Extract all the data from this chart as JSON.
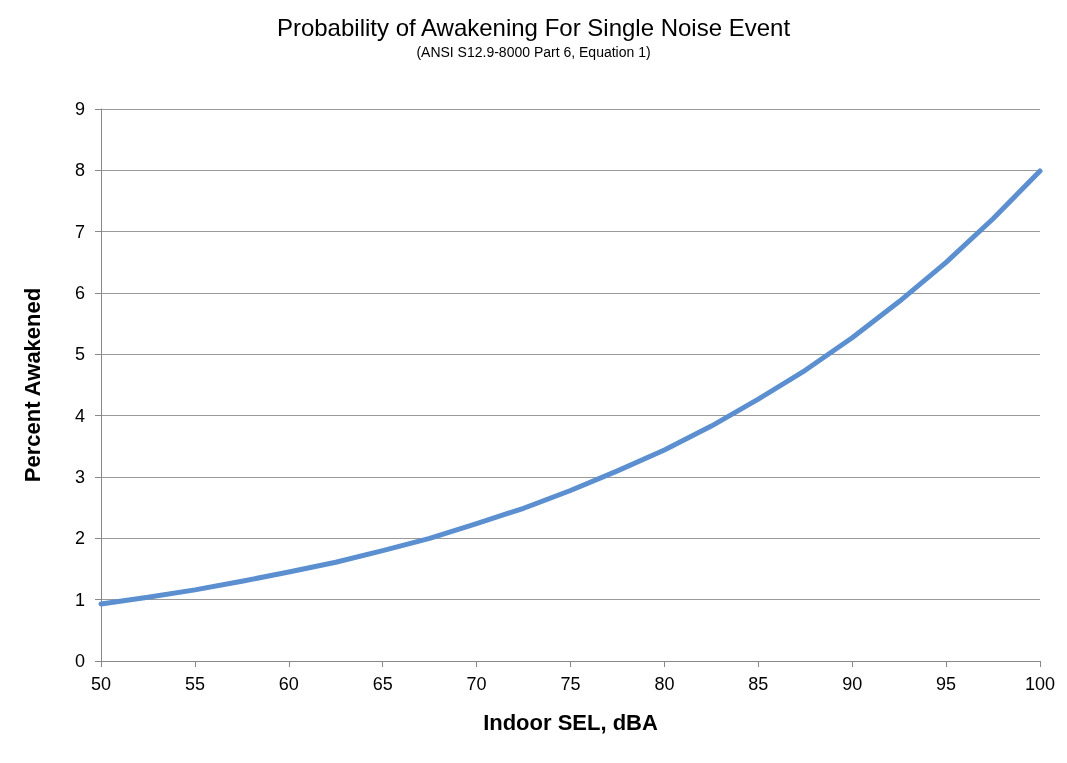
{
  "chart_data": {
    "type": "line",
    "title": "Probability of Awakening For Single Noise Event",
    "subtitle": "(ANSI S12.9-8000 Part 6, Equation 1)",
    "xlabel": "Indoor SEL, dBA",
    "ylabel": "Percent Awakened",
    "x": [
      50,
      52.5,
      55,
      57.5,
      60,
      62.5,
      65,
      67.5,
      70,
      72.5,
      75,
      77.5,
      80,
      82.5,
      85,
      87.5,
      90,
      92.5,
      95,
      97.5,
      100
    ],
    "series": [
      {
        "color": "#5b8fcf",
        "values": [
          0.93,
          1.04,
          1.16,
          1.3,
          1.45,
          1.61,
          1.8,
          2.0,
          2.24,
          2.49,
          2.78,
          3.1,
          3.44,
          3.83,
          4.27,
          4.74,
          5.27,
          5.86,
          6.5,
          7.21,
          7.99
        ]
      }
    ],
    "xlim": [
      50,
      100
    ],
    "xticks": [
      50,
      55,
      60,
      65,
      70,
      75,
      80,
      85,
      90,
      95,
      100
    ],
    "ylim": [
      0,
      9
    ],
    "yticks": [
      0,
      1,
      2,
      3,
      4,
      5,
      6,
      7,
      8,
      9
    ],
    "grid": "y",
    "marker": "none",
    "line_style": "solid"
  }
}
